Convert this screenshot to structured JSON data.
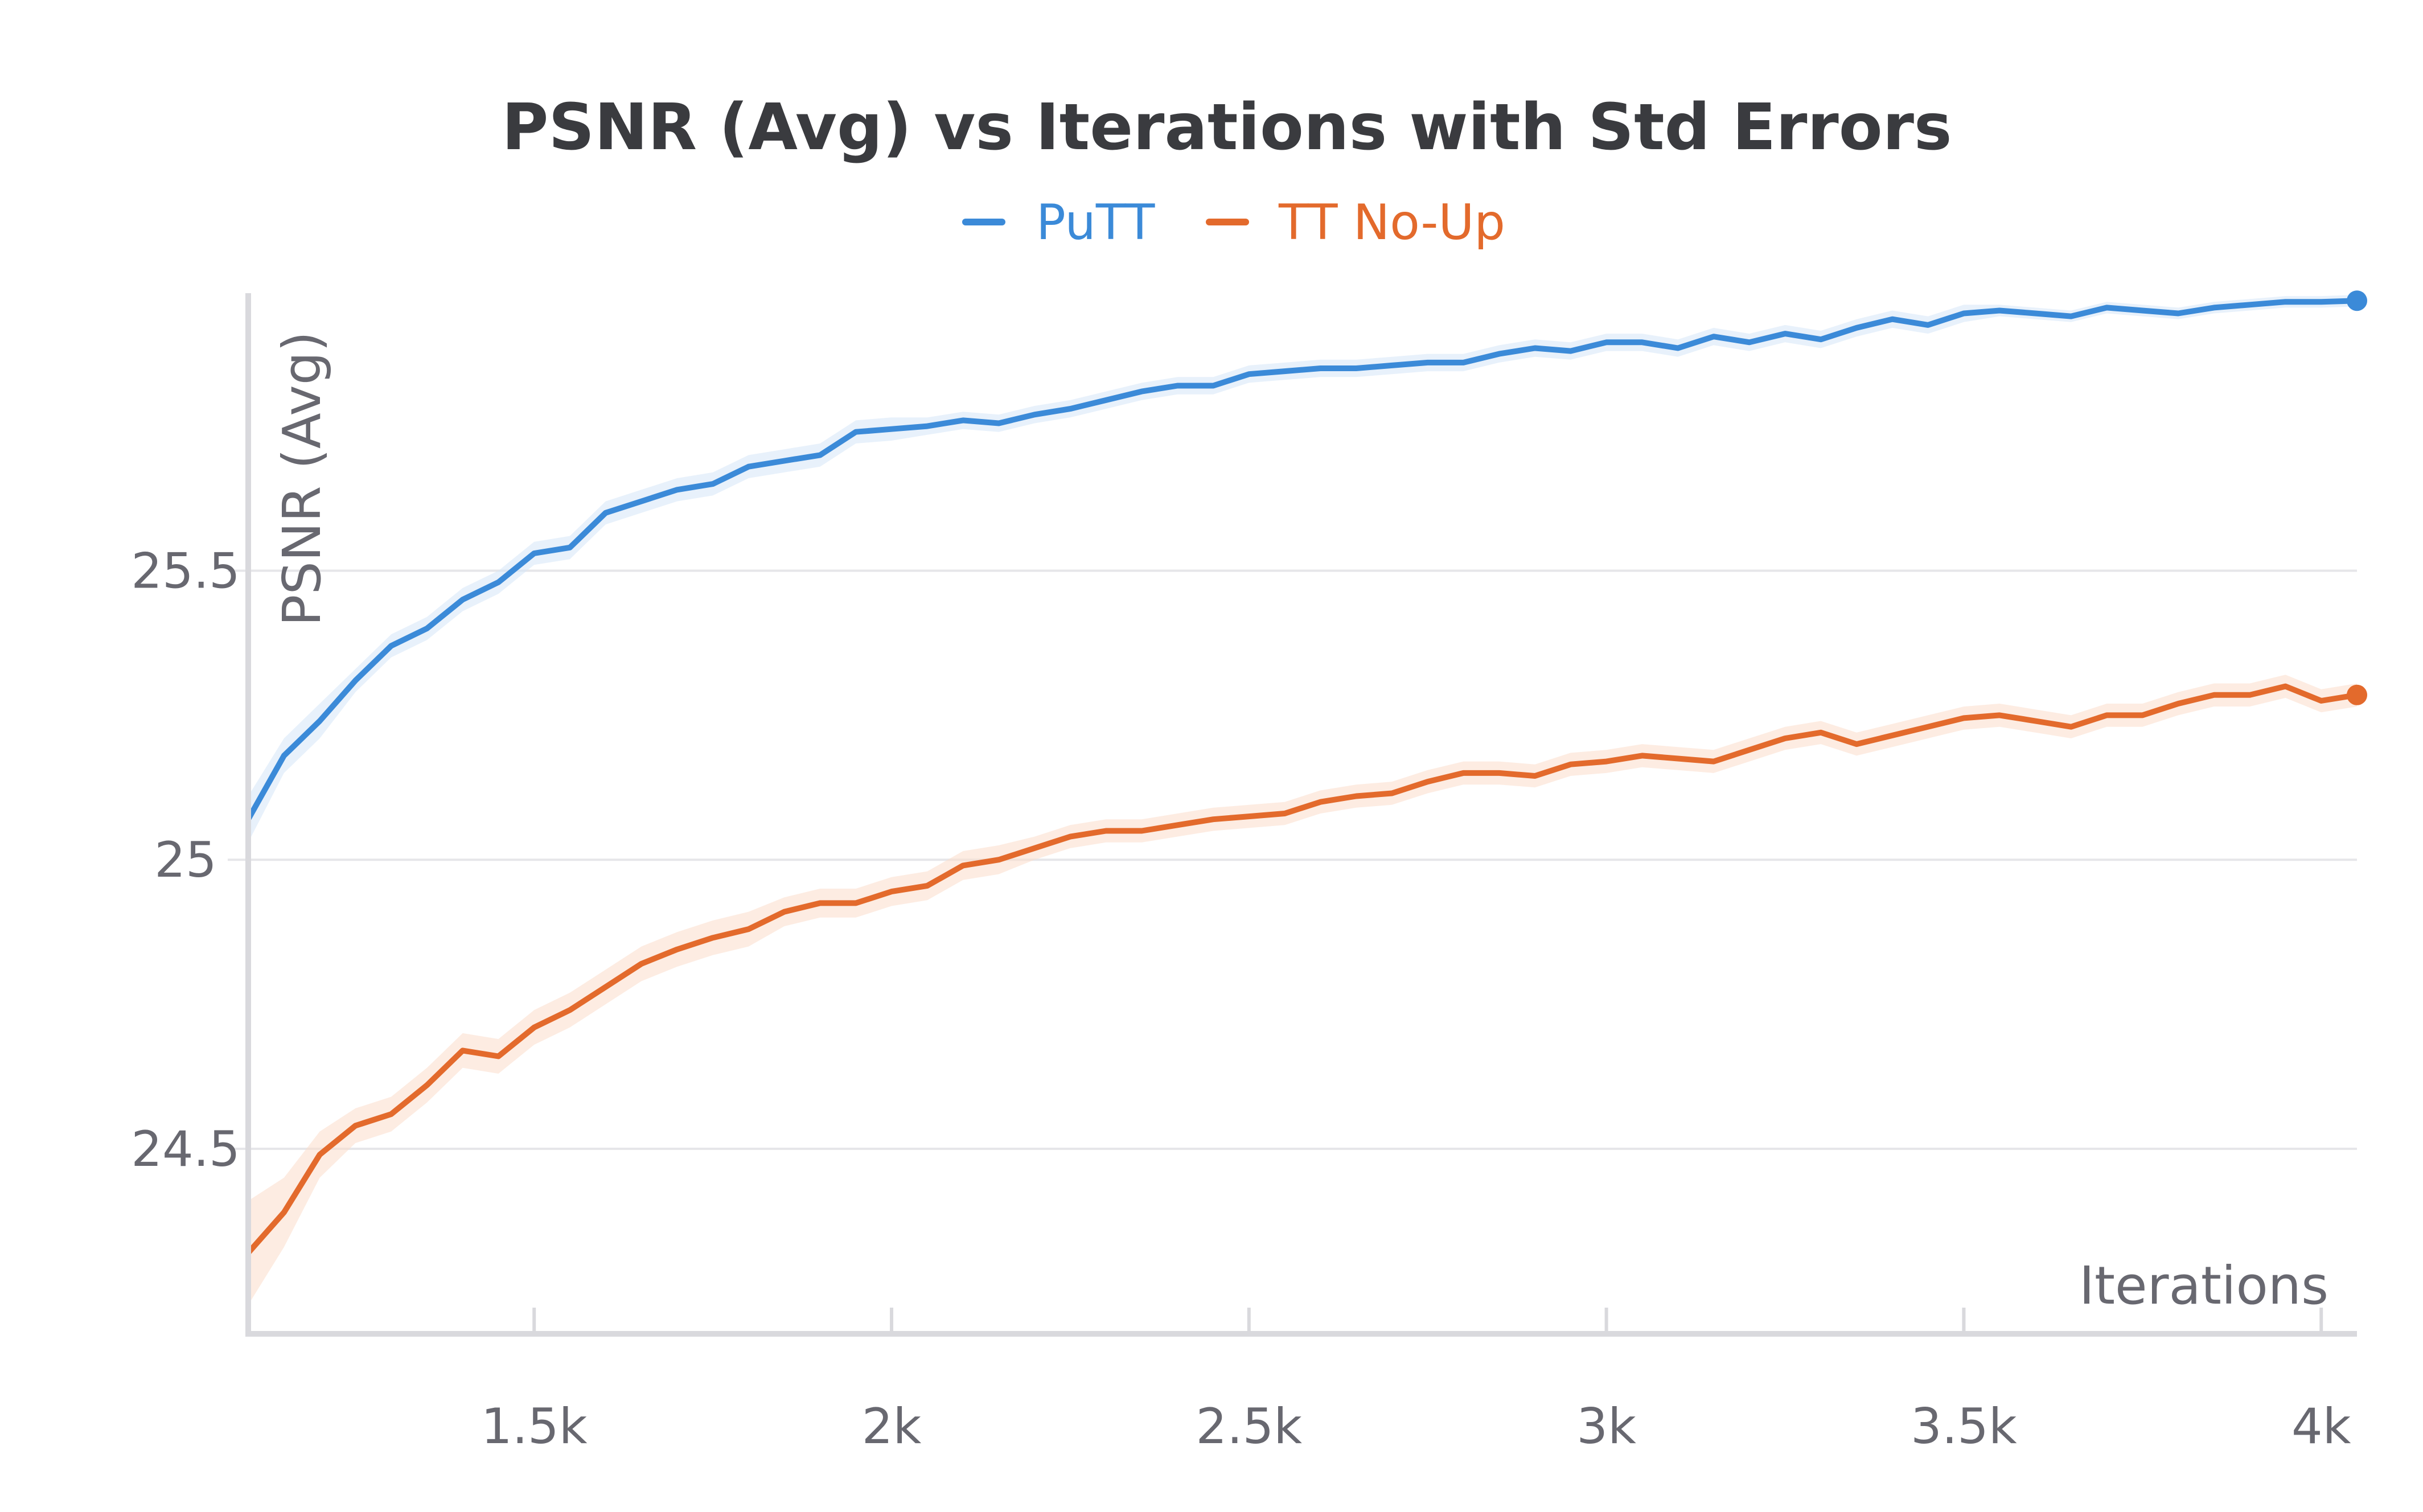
{
  "chart_data": {
    "type": "line",
    "title": "PSNR (Avg) vs Iterations with Std Errors",
    "xlabel": "Iterations",
    "ylabel": "PSNR (Avg)",
    "xlim": [
      1100,
      4050
    ],
    "ylim": [
      24.18,
      25.98
    ],
    "x_ticks": [
      1500,
      2000,
      2500,
      3000,
      3500,
      4000
    ],
    "x_tick_labels": [
      "1.5k",
      "2k",
      "2.5k",
      "3k",
      "3.5k",
      "4k"
    ],
    "y_ticks": [
      24.5,
      25,
      25.5
    ],
    "y_tick_labels": [
      "24.5",
      "25",
      "25.5"
    ],
    "grid": true,
    "legend": "top-center",
    "x": [
      1100,
      1150,
      1200,
      1250,
      1300,
      1350,
      1400,
      1450,
      1500,
      1550,
      1600,
      1650,
      1700,
      1750,
      1800,
      1850,
      1900,
      1950,
      2000,
      2050,
      2100,
      2150,
      2200,
      2250,
      2300,
      2350,
      2400,
      2450,
      2500,
      2550,
      2600,
      2650,
      2700,
      2750,
      2800,
      2850,
      2900,
      2950,
      3000,
      3050,
      3100,
      3150,
      3200,
      3250,
      3300,
      3350,
      3400,
      3450,
      3500,
      3550,
      3600,
      3650,
      3700,
      3750,
      3800,
      3850,
      3900,
      3950,
      4000,
      4050
    ],
    "series": [
      {
        "name": "PuTT",
        "color": "#3b8ad8",
        "values": [
          25.07,
          25.18,
          25.24,
          25.31,
          25.37,
          25.4,
          25.45,
          25.48,
          25.53,
          25.54,
          25.6,
          25.62,
          25.64,
          25.65,
          25.68,
          25.69,
          25.7,
          25.74,
          25.745,
          25.75,
          25.76,
          25.755,
          25.77,
          25.78,
          25.795,
          25.81,
          25.82,
          25.82,
          25.84,
          25.845,
          25.85,
          25.85,
          25.855,
          25.86,
          25.86,
          25.875,
          25.885,
          25.88,
          25.895,
          25.895,
          25.885,
          25.905,
          25.895,
          25.91,
          25.9,
          25.92,
          25.935,
          25.925,
          25.945,
          25.95,
          25.945,
          25.94,
          25.955,
          25.95,
          25.945,
          25.955,
          25.96,
          25.965,
          25.965,
          25.967
        ],
        "stderr": [
          0.04,
          0.03,
          0.03,
          0.02,
          0.02,
          0.02,
          0.02,
          0.02,
          0.02,
          0.02,
          0.02,
          0.02,
          0.02,
          0.02,
          0.02,
          0.02,
          0.02,
          0.02,
          0.02,
          0.015,
          0.015,
          0.015,
          0.015,
          0.015,
          0.015,
          0.015,
          0.015,
          0.015,
          0.015,
          0.015,
          0.015,
          0.015,
          0.015,
          0.015,
          0.015,
          0.015,
          0.015,
          0.015,
          0.015,
          0.015,
          0.015,
          0.015,
          0.015,
          0.015,
          0.015,
          0.015,
          0.015,
          0.015,
          0.015,
          0.01,
          0.01,
          0.01,
          0.01,
          0.01,
          0.01,
          0.01,
          0.01,
          0.01,
          0.01,
          0.01
        ]
      },
      {
        "name": "TT No-Up",
        "color": "#e36a2c",
        "values": [
          24.32,
          24.39,
          24.49,
          24.54,
          24.56,
          24.61,
          24.67,
          24.66,
          24.71,
          24.74,
          24.78,
          24.82,
          24.845,
          24.865,
          24.88,
          24.91,
          24.925,
          24.925,
          24.945,
          24.955,
          24.99,
          25.0,
          25.02,
          25.04,
          25.05,
          25.05,
          25.06,
          25.07,
          25.075,
          25.08,
          25.1,
          25.11,
          25.115,
          25.135,
          25.15,
          25.15,
          25.145,
          25.165,
          25.17,
          25.18,
          25.175,
          25.17,
          25.19,
          25.21,
          25.22,
          25.2,
          25.215,
          25.23,
          25.245,
          25.25,
          25.24,
          25.23,
          25.25,
          25.25,
          25.27,
          25.285,
          25.285,
          25.3,
          25.275,
          25.285
        ],
        "stderr": [
          0.09,
          0.06,
          0.04,
          0.03,
          0.03,
          0.03,
          0.03,
          0.03,
          0.03,
          0.03,
          0.03,
          0.03,
          0.03,
          0.03,
          0.03,
          0.025,
          0.025,
          0.025,
          0.025,
          0.025,
          0.025,
          0.025,
          0.02,
          0.02,
          0.02,
          0.02,
          0.02,
          0.02,
          0.02,
          0.02,
          0.02,
          0.02,
          0.02,
          0.02,
          0.02,
          0.02,
          0.02,
          0.02,
          0.02,
          0.02,
          0.02,
          0.02,
          0.02,
          0.02,
          0.02,
          0.02,
          0.02,
          0.02,
          0.02,
          0.02,
          0.02,
          0.02,
          0.02,
          0.02,
          0.02,
          0.02,
          0.02,
          0.02,
          0.02,
          0.02
        ]
      }
    ]
  }
}
